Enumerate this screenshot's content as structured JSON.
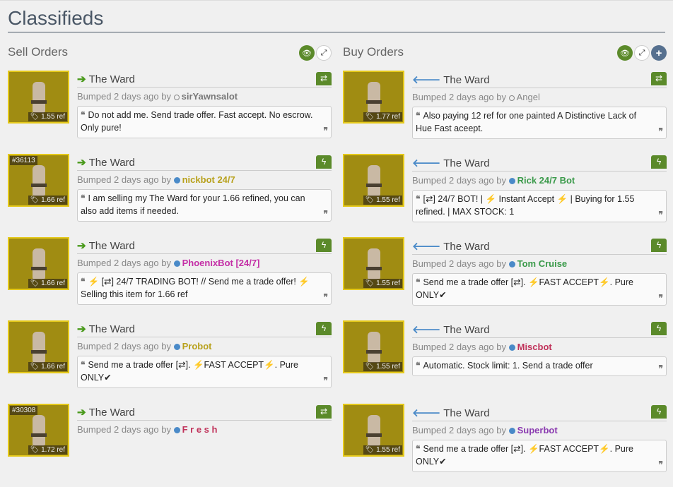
{
  "page_title": "Classifieds",
  "sell": {
    "heading": "Sell Orders",
    "orders": [
      {
        "item": "The Ward",
        "price": "1.55 ref",
        "craft": "",
        "bumped": "Bumped 2 days ago by",
        "user": "sirYawnsalot",
        "user_color": "#777777",
        "online": false,
        "trade_icon": "exchange-icon",
        "message": "Do not add me. Send trade offer. Fast accept. No escrow. Only pure!"
      },
      {
        "item": "The Ward",
        "price": "1.66 ref",
        "craft": "#36113",
        "bumped": "Bumped 2 days ago by",
        "user": "nickbot 24/7",
        "user_color": "#b8a11c",
        "online": true,
        "trade_icon": "lightning-icon",
        "message": "I am selling my The Ward for your 1.66 refined, you can also add items if needed."
      },
      {
        "item": "The Ward",
        "price": "1.66 ref",
        "craft": "",
        "bumped": "Bumped 2 days ago by",
        "user": "PhoenixBot [24/7]",
        "user_color": "#c42fa6",
        "online": true,
        "trade_icon": "lightning-icon",
        "message": "⚡ [⇄] 24/7 TRADING BOT! // Send me a trade offer! ⚡ Selling this item for 1.66 ref"
      },
      {
        "item": "The Ward",
        "price": "1.66 ref",
        "craft": "",
        "bumped": "Bumped 2 days ago by",
        "user": "Probot",
        "user_color": "#b8a11c",
        "online": true,
        "trade_icon": "lightning-icon",
        "message": "Send me a trade offer [⇄]. ⚡FAST ACCEPT⚡. Pure ONLY✔"
      },
      {
        "item": "The Ward",
        "price": "1.72 ref",
        "craft": "#30308",
        "bumped": "Bumped 2 days ago by",
        "user": "F r e s h",
        "user_color": "#c0325a",
        "online": true,
        "trade_icon": "exchange-icon",
        "message": ""
      }
    ]
  },
  "buy": {
    "heading": "Buy Orders",
    "orders": [
      {
        "item": "The Ward",
        "price": "1.77 ref",
        "craft": "",
        "bumped": "Bumped 2 days ago by",
        "user": "Angel",
        "user_color": "#888888",
        "online": false,
        "trade_icon": "exchange-icon",
        "message": "Also paying 12 ref for one painted A Distinctive Lack of Hue Fast aceept."
      },
      {
        "item": "The Ward",
        "price": "1.55 ref",
        "craft": "",
        "bumped": "Bumped 2 days ago by",
        "user": "Rick 24/7 Bot",
        "user_color": "#3a9a4a",
        "online": true,
        "trade_icon": "lightning-icon",
        "message": "[⇄] 24/7 BOT! | ⚡ Instant Accept ⚡ | Buying for 1.55 refined. | MAX STOCK: 1"
      },
      {
        "item": "The Ward",
        "price": "1.55 ref",
        "craft": "",
        "bumped": "Bumped 2 days ago by",
        "user": "Tom Cruise",
        "user_color": "#3a9a4a",
        "online": true,
        "trade_icon": "lightning-icon",
        "message": "Send me a trade offer [⇄]. ⚡FAST ACCEPT⚡. Pure ONLY✔"
      },
      {
        "item": "The Ward",
        "price": "1.55 ref",
        "craft": "",
        "bumped": "Bumped 2 days ago by",
        "user": "Miscbot",
        "user_color": "#c0325a",
        "online": true,
        "trade_icon": "lightning-icon",
        "message": "Automatic. Stock limit: 1. Send a trade offer"
      },
      {
        "item": "The Ward",
        "price": "1.55 ref",
        "craft": "",
        "bumped": "Bumped 2 days ago by",
        "user": "Superbot",
        "user_color": "#8a3ab0",
        "online": true,
        "trade_icon": "lightning-icon",
        "message": "Send me a trade offer [⇄]. ⚡FAST ACCEPT⚡. Pure ONLY✔"
      }
    ]
  }
}
